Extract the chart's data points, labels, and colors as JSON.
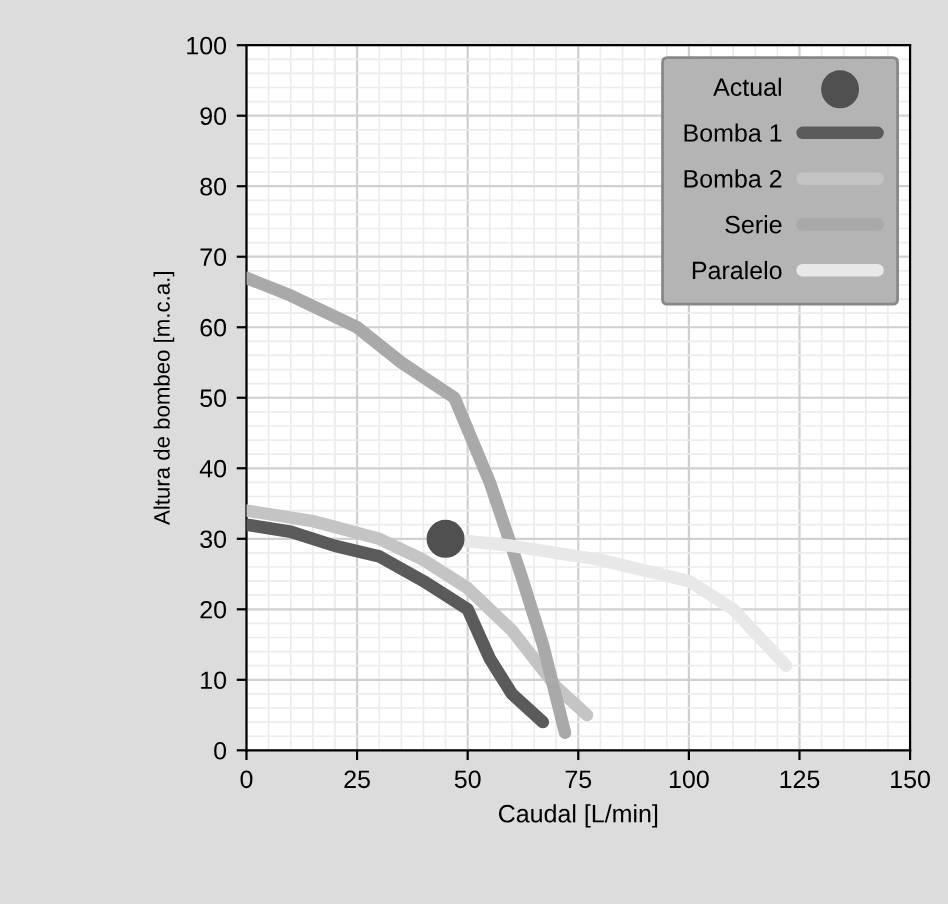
{
  "chart_data": {
    "type": "line",
    "xlabel": "Caudal [L/min]",
    "ylabel": "Altura de bombeo [m.c.a.]",
    "xlim": [
      0,
      150
    ],
    "xticks": [
      0,
      25,
      50,
      75,
      100,
      125,
      150
    ],
    "ylim": [
      0,
      100
    ],
    "yticks": [
      0,
      10,
      20,
      30,
      40,
      50,
      60,
      70,
      80,
      90,
      100
    ],
    "grid": true,
    "legend": "top right",
    "series": [
      {
        "name": "Actual",
        "type": "scatter",
        "marker": "circle",
        "color": "#505050",
        "x": [
          45
        ],
        "values": [
          30
        ]
      },
      {
        "name": "Bomba 1",
        "color": "#5a5a5a",
        "x": [
          0,
          10,
          20,
          30,
          40,
          50,
          55,
          60,
          67
        ],
        "values": [
          32,
          31,
          29,
          27.5,
          24,
          20,
          13,
          8,
          4
        ]
      },
      {
        "name": "Bomba 2",
        "color": "#c4c4c4",
        "x": [
          0,
          15,
          30,
          40,
          50,
          60,
          70,
          77
        ],
        "values": [
          34,
          32.5,
          30,
          27,
          23,
          17,
          9,
          5
        ]
      },
      {
        "name": "Serie",
        "color": "#a9a9a9",
        "x": [
          0,
          10,
          25,
          35,
          47,
          55,
          62,
          67,
          71,
          72
        ],
        "values": [
          67,
          64.5,
          60,
          55,
          50,
          38,
          25,
          15,
          5,
          2.5
        ]
      },
      {
        "name": "Paralelo",
        "color": "#e8e8e8",
        "x": [
          45,
          60,
          80,
          100,
          110,
          122
        ],
        "values": [
          30,
          29,
          27,
          24,
          20,
          12
        ]
      }
    ]
  }
}
